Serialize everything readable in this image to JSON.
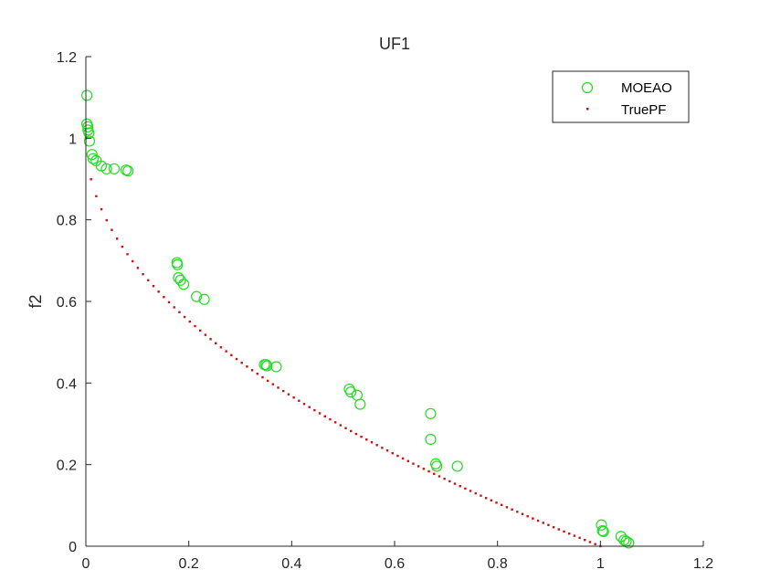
{
  "chart_data": {
    "type": "scatter",
    "title": "UF1",
    "xlabel": "",
    "ylabel": "f2",
    "xlim": [
      0,
      1.2
    ],
    "ylim": [
      0,
      1.2
    ],
    "xticks": [
      "0",
      "0.2",
      "0.4",
      "0.6",
      "0.8",
      "1",
      "1.2"
    ],
    "yticks": [
      "0",
      "0.2",
      "0.4",
      "0.6",
      "0.8",
      "1",
      "1.2"
    ],
    "grid": false,
    "legend_position": "top-right",
    "series": [
      {
        "name": "MOEAO",
        "marker": "circle",
        "color": "#22dd22",
        "points": [
          [
            0.002,
            1.105
          ],
          [
            0.002,
            1.035
          ],
          [
            0.004,
            1.028
          ],
          [
            0.004,
            1.02
          ],
          [
            0.006,
            1.013
          ],
          [
            0.007,
            0.993
          ],
          [
            0.012,
            0.96
          ],
          [
            0.014,
            0.95
          ],
          [
            0.02,
            0.945
          ],
          [
            0.03,
            0.932
          ],
          [
            0.04,
            0.925
          ],
          [
            0.055,
            0.925
          ],
          [
            0.078,
            0.922
          ],
          [
            0.082,
            0.92
          ],
          [
            0.177,
            0.695
          ],
          [
            0.178,
            0.69
          ],
          [
            0.18,
            0.658
          ],
          [
            0.184,
            0.652
          ],
          [
            0.19,
            0.642
          ],
          [
            0.215,
            0.612
          ],
          [
            0.23,
            0.605
          ],
          [
            0.347,
            0.445
          ],
          [
            0.35,
            0.445
          ],
          [
            0.352,
            0.442
          ],
          [
            0.37,
            0.44
          ],
          [
            0.512,
            0.385
          ],
          [
            0.515,
            0.378
          ],
          [
            0.527,
            0.37
          ],
          [
            0.533,
            0.348
          ],
          [
            0.67,
            0.325
          ],
          [
            0.67,
            0.262
          ],
          [
            0.68,
            0.202
          ],
          [
            0.682,
            0.196
          ],
          [
            0.722,
            0.196
          ],
          [
            1.002,
            0.052
          ],
          [
            1.004,
            0.038
          ],
          [
            1.006,
            0.036
          ],
          [
            1.04,
            0.024
          ],
          [
            1.046,
            0.015
          ],
          [
            1.05,
            0.012
          ],
          [
            1.055,
            0.008
          ]
        ]
      },
      {
        "name": "TruePF",
        "marker": "dot",
        "color": "#cc1111",
        "x": [
          0,
          1
        ],
        "curve": "f2 = 1 - sqrt(f1)"
      }
    ]
  }
}
